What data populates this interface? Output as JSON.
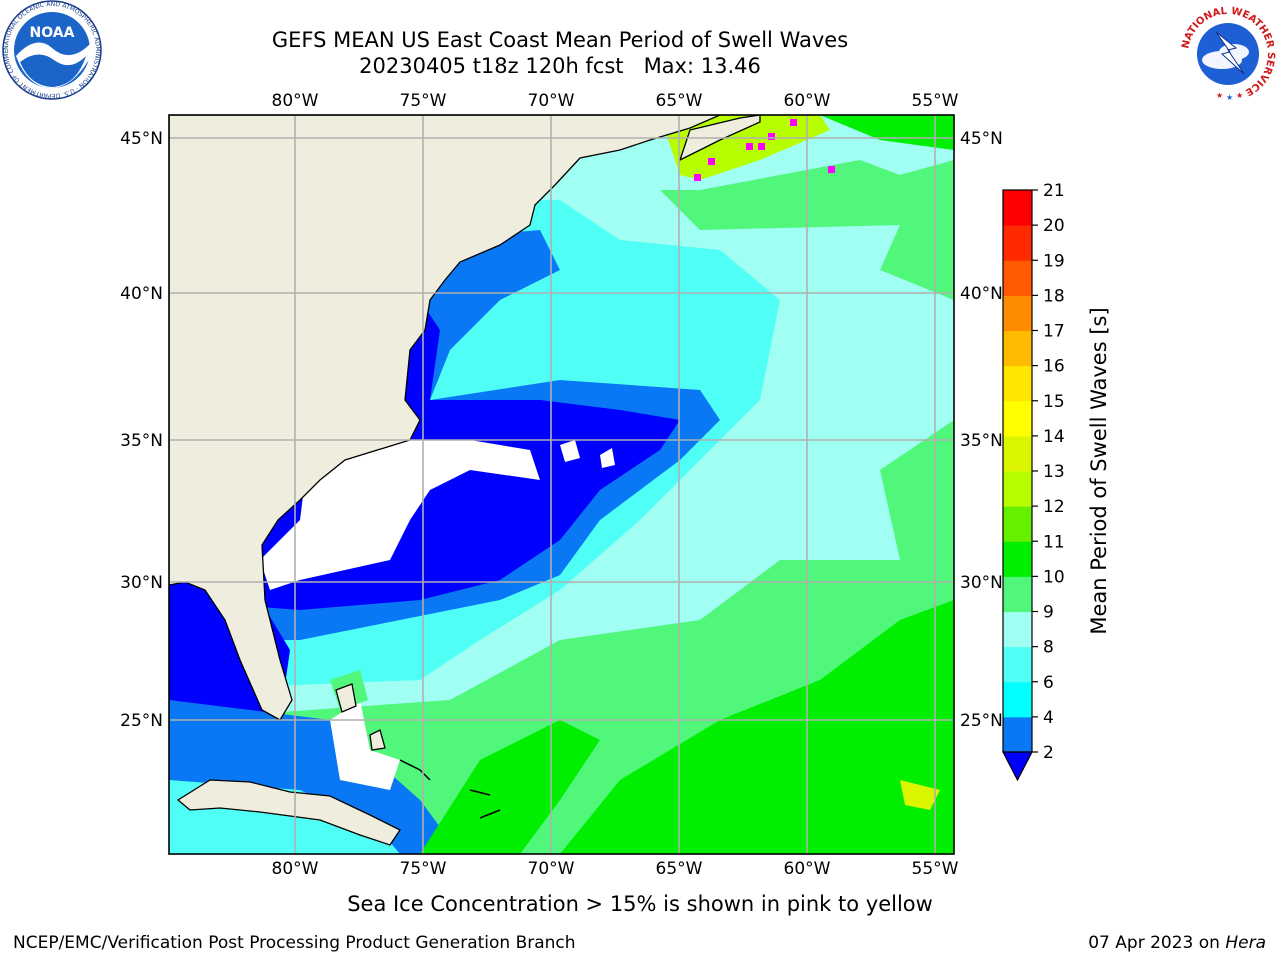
{
  "title": {
    "line1": "GEFS MEAN US East Coast Mean Period of Swell Waves",
    "line2": "20230405 t18z 120h fcst   Max: 13.46"
  },
  "map": {
    "lon_labels": [
      "80°W",
      "75°W",
      "70°W",
      "65°W",
      "60°W",
      "55°W"
    ],
    "lat_labels": [
      "45°N",
      "40°N",
      "35°N",
      "30°N",
      "25°N"
    ],
    "lon_range": [
      -85,
      -55
    ],
    "lat_range": [
      20.5,
      46
    ],
    "colors": {
      "land": "#efedde",
      "grid": "#b0b0b0"
    }
  },
  "colorbar": {
    "label": "Mean Period of Swell Waves [s]",
    "ticks": [
      "2",
      "4",
      "6",
      "8",
      "9",
      "10",
      "11",
      "12",
      "13",
      "14",
      "15",
      "16",
      "17",
      "18",
      "19",
      "20",
      "21"
    ],
    "colors": [
      "#0000ff",
      "#0a78f5",
      "#00fffe",
      "#4ffff5",
      "#a0fff2",
      "#50f77a",
      "#00ee00",
      "#66f000",
      "#b7ff00",
      "#dcf500",
      "#ffff00",
      "#ffe600",
      "#ffbb00",
      "#ff8c00",
      "#ff5a00",
      "#ff2a00",
      "#ff0000"
    ],
    "extend_low_color": "#0000ff"
  },
  "caption": "Sea Ice Concentration > 15% is shown in pink to yellow",
  "footer": {
    "left": "NCEP/EMC/Verification Post Processing Product Generation Branch",
    "right_prefix": "07 Apr 2023 on ",
    "right_host": "Hera"
  },
  "logos": {
    "noaa": {
      "text": "NOAA",
      "ring": "NATIONAL OCEANIC AND ATMOSPHERIC ADMINISTRATION · U.S. DEPARTMENT OF COMMERCE"
    },
    "nws": {
      "ring": "NATIONAL WEATHER SERVICE"
    }
  }
}
